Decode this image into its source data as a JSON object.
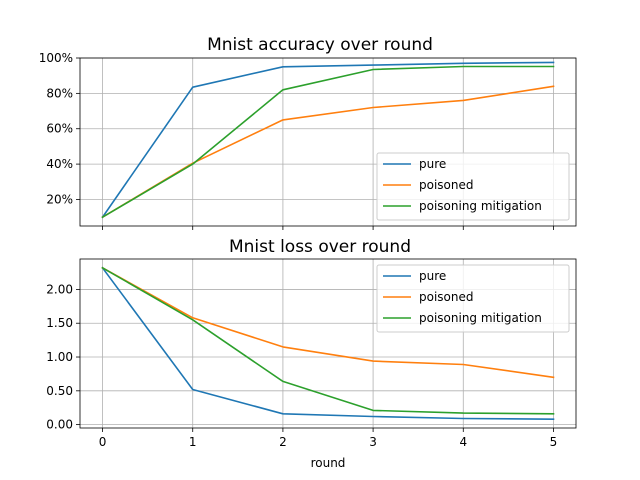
{
  "chart_data": [
    {
      "type": "line",
      "title": "Mnist accuracy over round",
      "xlabel": "",
      "ylabel": "",
      "x": [
        0,
        1,
        2,
        3,
        4,
        5
      ],
      "xlim": [
        -0.25,
        5.25
      ],
      "ylim": [
        0.05,
        1.0
      ],
      "yticks": [
        0.2,
        0.4,
        0.6,
        0.8,
        1.0
      ],
      "ytick_labels": [
        "20%",
        "40%",
        "60%",
        "80%",
        "100%"
      ],
      "show_x_tick_labels": false,
      "grid": true,
      "legend_position": "lower-right",
      "series": [
        {
          "name": "pure",
          "color": "#1f77b4",
          "values": [
            0.1,
            0.835,
            0.95,
            0.96,
            0.97,
            0.975
          ]
        },
        {
          "name": "poisoned",
          "color": "#ff7f0e",
          "values": [
            0.1,
            0.405,
            0.65,
            0.72,
            0.76,
            0.84
          ]
        },
        {
          "name": "poisoning mitigation",
          "color": "#2ca02c",
          "values": [
            0.1,
            0.4,
            0.82,
            0.935,
            0.952,
            0.952
          ]
        }
      ]
    },
    {
      "type": "line",
      "title": "Mnist loss over round",
      "xlabel": "round",
      "ylabel": "",
      "x": [
        0,
        1,
        2,
        3,
        4,
        5
      ],
      "xlim": [
        -0.25,
        5.25
      ],
      "ylim": [
        -0.05,
        2.45
      ],
      "yticks": [
        0.0,
        0.5,
        1.0,
        1.5,
        2.0
      ],
      "ytick_labels": [
        "0.00",
        "0.50",
        "1.00",
        "1.50",
        "2.00"
      ],
      "xtick_labels": [
        "0",
        "1",
        "2",
        "3",
        "4",
        "5"
      ],
      "show_x_tick_labels": true,
      "grid": true,
      "legend_position": "upper-right",
      "series": [
        {
          "name": "pure",
          "color": "#1f77b4",
          "values": [
            2.32,
            0.52,
            0.16,
            0.12,
            0.09,
            0.08
          ]
        },
        {
          "name": "poisoned",
          "color": "#ff7f0e",
          "values": [
            2.32,
            1.58,
            1.15,
            0.94,
            0.89,
            0.7
          ]
        },
        {
          "name": "poisoning mitigation",
          "color": "#2ca02c",
          "values": [
            2.32,
            1.55,
            0.64,
            0.21,
            0.17,
            0.16
          ]
        }
      ]
    }
  ]
}
